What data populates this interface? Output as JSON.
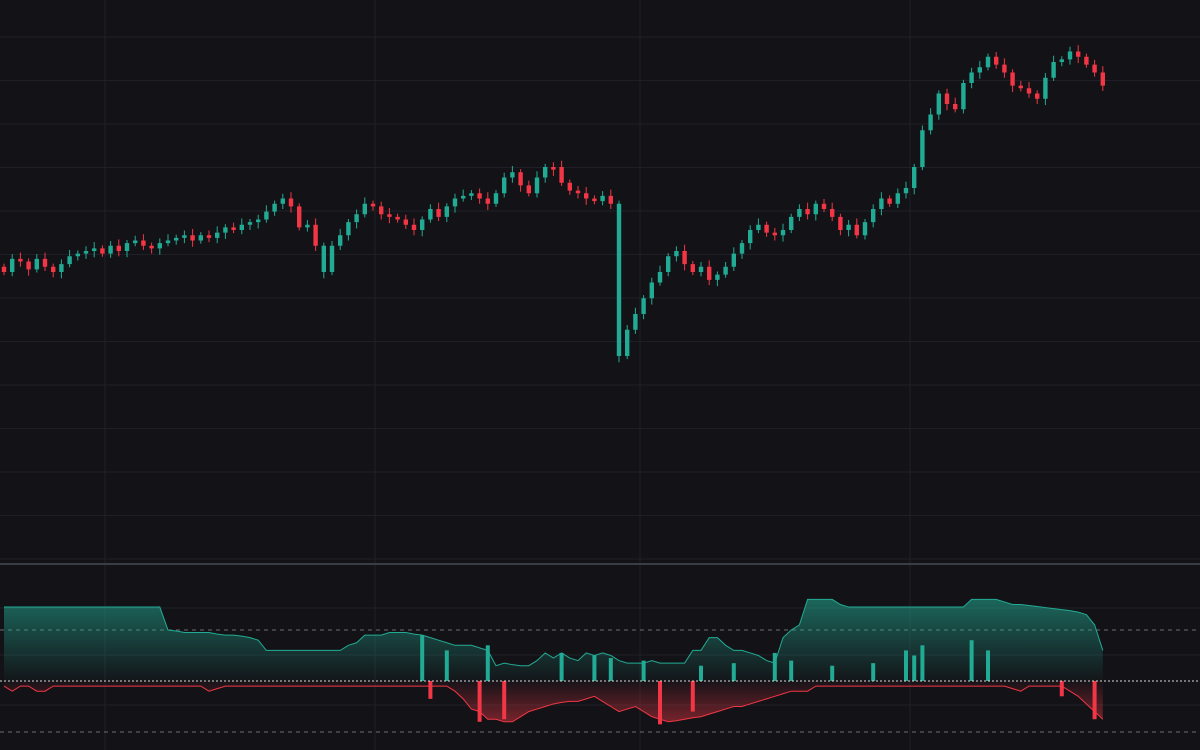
{
  "theme": {
    "background": "#131317",
    "grid": "#1f2027",
    "divider": "#3b3d45",
    "up": "#22ab94",
    "down": "#f23645",
    "baseline": "#d8d8d8",
    "guide": "#6b6e76"
  },
  "chart_data": [
    {
      "type": "candlestick",
      "title": "",
      "xlabel": "",
      "ylabel": "",
      "grid": true,
      "bar_count": 135,
      "ylim": [
        0,
        1000
      ],
      "closes": [
        520,
        545,
        540,
        525,
        545,
        530,
        520,
        535,
        550,
        555,
        560,
        565,
        555,
        570,
        560,
        575,
        580,
        570,
        565,
        575,
        580,
        585,
        590,
        580,
        590,
        585,
        595,
        605,
        600,
        610,
        615,
        620,
        635,
        650,
        660,
        645,
        605,
        610,
        570,
        520,
        570,
        590,
        615,
        630,
        650,
        645,
        630,
        625,
        620,
        610,
        600,
        620,
        640,
        625,
        645,
        660,
        665,
        670,
        660,
        650,
        670,
        700,
        710,
        685,
        670,
        700,
        720,
        720,
        690,
        675,
        670,
        660,
        655,
        665,
        650,
        360,
        410,
        440,
        470,
        500,
        520,
        550,
        560,
        535,
        520,
        530,
        505,
        515,
        530,
        555,
        575,
        600,
        610,
        595,
        590,
        600,
        625,
        640,
        630,
        650,
        640,
        625,
        600,
        610,
        590,
        615,
        640,
        660,
        650,
        670,
        680,
        720,
        790,
        820,
        860,
        840,
        830,
        880,
        900,
        910,
        930,
        915,
        900,
        875,
        870,
        860,
        850,
        890,
        920,
        925,
        940,
        930,
        915,
        900,
        875
      ],
      "directions": [
        "down",
        "up",
        "down",
        "down",
        "up",
        "down",
        "down",
        "up",
        "up",
        "up",
        "up",
        "up",
        "down",
        "up",
        "down",
        "up",
        "up",
        "down",
        "down",
        "up",
        "up",
        "up",
        "up",
        "down",
        "up",
        "down",
        "up",
        "up",
        "down",
        "up",
        "up",
        "up",
        "up",
        "up",
        "up",
        "down",
        "down",
        "up",
        "down",
        "up",
        "up",
        "up",
        "up",
        "up",
        "up",
        "down",
        "down",
        "down",
        "down",
        "down",
        "down",
        "up",
        "up",
        "down",
        "up",
        "up",
        "up",
        "up",
        "down",
        "down",
        "up",
        "up",
        "up",
        "down",
        "down",
        "up",
        "up",
        "down",
        "down",
        "down",
        "down",
        "down",
        "down",
        "up",
        "down",
        "up",
        "up",
        "up",
        "up",
        "up",
        "up",
        "up",
        "up",
        "down",
        "down",
        "up",
        "down",
        "up",
        "up",
        "up",
        "up",
        "up",
        "up",
        "down",
        "down",
        "up",
        "up",
        "up",
        "down",
        "up",
        "down",
        "down",
        "down",
        "up",
        "down",
        "up",
        "up",
        "up",
        "down",
        "up",
        "up",
        "up",
        "up",
        "up",
        "up",
        "down",
        "down",
        "up",
        "up",
        "up",
        "up",
        "down",
        "down",
        "down",
        "down",
        "down",
        "down",
        "up",
        "up",
        "up",
        "up",
        "down",
        "down",
        "down",
        "down"
      ]
    },
    {
      "type": "area",
      "title": "",
      "grid": true,
      "baseline": 0,
      "upper_guide": 1,
      "lower_guide": -1,
      "positive_envelope": [
        1.45,
        1.45,
        1.45,
        1.45,
        1.45,
        1.45,
        1.45,
        1.45,
        1.45,
        1.45,
        1.45,
        1.45,
        1.45,
        1.45,
        1.45,
        1.45,
        1.45,
        1.45,
        1.45,
        1.45,
        1.0,
        0.98,
        0.95,
        0.95,
        0.95,
        0.95,
        0.92,
        0.9,
        0.9,
        0.88,
        0.85,
        0.8,
        0.6,
        0.6,
        0.6,
        0.6,
        0.6,
        0.6,
        0.6,
        0.6,
        0.6,
        0.6,
        0.7,
        0.75,
        0.9,
        0.9,
        0.9,
        0.95,
        0.95,
        0.95,
        0.92,
        0.9,
        0.85,
        0.8,
        0.75,
        0.7,
        0.7,
        0.7,
        0.65,
        0.6,
        0.3,
        0.35,
        0.32,
        0.3,
        0.3,
        0.4,
        0.55,
        0.45,
        0.55,
        0.45,
        0.4,
        0.55,
        0.5,
        0.55,
        0.5,
        0.4,
        0.35,
        0.35,
        0.35,
        0.4,
        0.35,
        0.35,
        0.35,
        0.35,
        0.6,
        0.6,
        0.85,
        0.85,
        0.7,
        0.6,
        0.6,
        0.55,
        0.5,
        0.4,
        0.35,
        0.85,
        1.0,
        1.1,
        1.6,
        1.6,
        1.6,
        1.6,
        1.5,
        1.45,
        1.45,
        1.45,
        1.45,
        1.45,
        1.45,
        1.45,
        1.45,
        1.45,
        1.45,
        1.45,
        1.45,
        1.45,
        1.45,
        1.45,
        1.6,
        1.6,
        1.6,
        1.6,
        1.55,
        1.5,
        1.5,
        1.48,
        1.46,
        1.44,
        1.42,
        1.4,
        1.38,
        1.35,
        1.3,
        1.1,
        0.6
      ],
      "negative_envelope": [
        -0.1,
        -0.2,
        -0.1,
        -0.1,
        -0.2,
        -0.2,
        -0.1,
        -0.1,
        -0.1,
        -0.1,
        -0.1,
        -0.1,
        -0.1,
        -0.1,
        -0.1,
        -0.1,
        -0.1,
        -0.1,
        -0.1,
        -0.1,
        -0.1,
        -0.1,
        -0.1,
        -0.1,
        -0.1,
        -0.2,
        -0.15,
        -0.1,
        -0.1,
        -0.1,
        -0.1,
        -0.1,
        -0.1,
        -0.1,
        -0.1,
        -0.1,
        -0.1,
        -0.1,
        -0.1,
        -0.1,
        -0.1,
        -0.1,
        -0.1,
        -0.1,
        -0.1,
        -0.1,
        -0.1,
        -0.1,
        -0.1,
        -0.1,
        -0.1,
        -0.1,
        -0.1,
        -0.1,
        -0.1,
        -0.2,
        -0.35,
        -0.55,
        -0.6,
        -0.75,
        -0.75,
        -0.8,
        -0.8,
        -0.7,
        -0.6,
        -0.55,
        -0.5,
        -0.45,
        -0.42,
        -0.4,
        -0.4,
        -0.35,
        -0.3,
        -0.4,
        -0.5,
        -0.6,
        -0.55,
        -0.5,
        -0.6,
        -0.7,
        -0.75,
        -0.8,
        -0.78,
        -0.75,
        -0.72,
        -0.7,
        -0.65,
        -0.6,
        -0.55,
        -0.5,
        -0.5,
        -0.45,
        -0.4,
        -0.35,
        -0.3,
        -0.25,
        -0.2,
        -0.2,
        -0.2,
        -0.1,
        -0.1,
        -0.1,
        -0.1,
        -0.1,
        -0.1,
        -0.1,
        -0.1,
        -0.1,
        -0.1,
        -0.1,
        -0.1,
        -0.1,
        -0.1,
        -0.1,
        -0.1,
        -0.1,
        -0.1,
        -0.1,
        -0.1,
        -0.1,
        -0.1,
        -0.1,
        -0.1,
        -0.15,
        -0.2,
        -0.1,
        -0.1,
        -0.1,
        -0.1,
        -0.1,
        -0.2,
        -0.3,
        -0.45,
        -0.6,
        -0.75
      ],
      "up_spikes": [
        [
          51,
          0.9
        ],
        [
          54,
          0.6
        ],
        [
          59,
          0.7
        ],
        [
          68,
          0.55
        ],
        [
          72,
          0.5
        ],
        [
          74,
          0.45
        ],
        [
          78,
          0.4
        ],
        [
          85,
          0.3
        ],
        [
          89,
          0.35
        ],
        [
          94,
          0.55
        ],
        [
          96,
          0.4
        ],
        [
          101,
          0.3
        ],
        [
          106,
          0.35
        ],
        [
          110,
          0.6
        ],
        [
          111,
          0.5
        ],
        [
          112,
          0.7
        ],
        [
          118,
          0.8
        ],
        [
          120,
          0.6
        ]
      ],
      "down_spikes": [
        [
          52,
          -0.35
        ],
        [
          58,
          -0.8
        ],
        [
          61,
          -0.75
        ],
        [
          80,
          -0.85
        ],
        [
          84,
          -0.6
        ],
        [
          129,
          -0.3
        ],
        [
          133,
          -0.75
        ]
      ]
    }
  ]
}
